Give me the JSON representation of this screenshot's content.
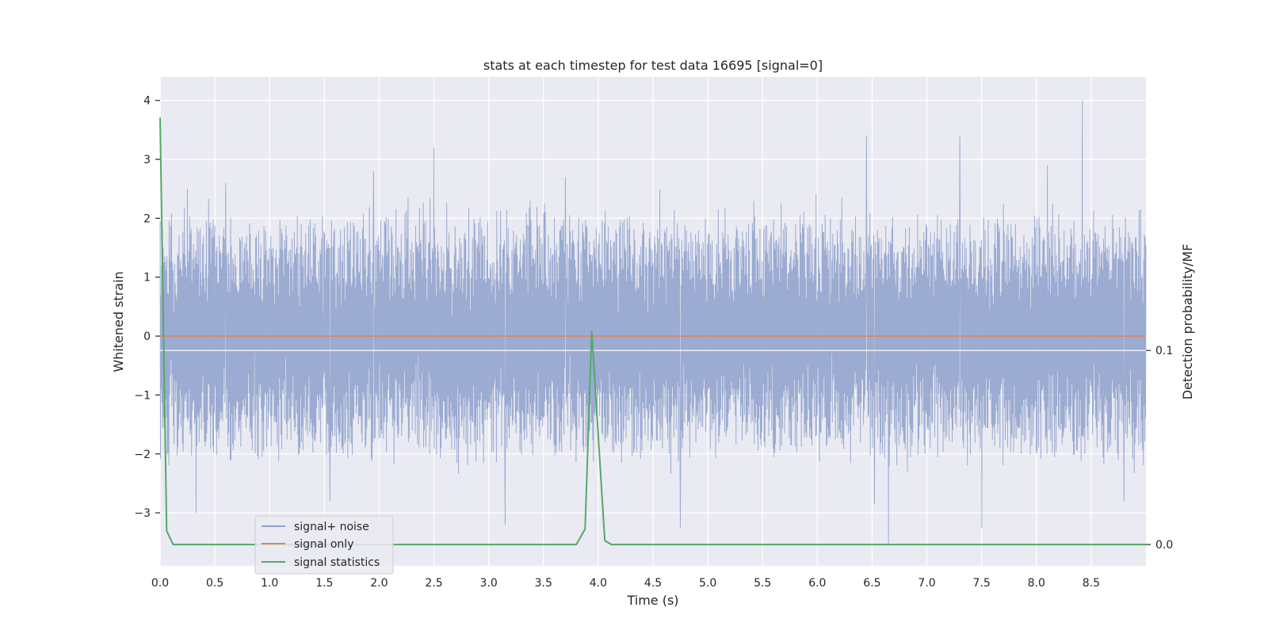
{
  "chart_data": {
    "type": "line",
    "title": "stats at each timestep for test data 16695 [signal=0]",
    "xlabel": "Time (s)",
    "ylabel": "Whitened strain",
    "y2label": "Detection probability/MF",
    "xlim": [
      0.0,
      9.0
    ],
    "ylim": [
      -3.9,
      4.4
    ],
    "y2lim": [
      -0.011,
      0.241
    ],
    "xticks": [
      0.0,
      0.5,
      1.0,
      1.5,
      2.0,
      2.5,
      3.0,
      3.5,
      4.0,
      4.5,
      5.0,
      5.5,
      6.0,
      6.5,
      7.0,
      7.5,
      8.0,
      8.5
    ],
    "xtick_labels": [
      "0.0",
      "0.5",
      "1.0",
      "1.5",
      "2.0",
      "2.5",
      "3.0",
      "3.5",
      "4.0",
      "4.5",
      "5.0",
      "5.5",
      "6.0",
      "6.5",
      "7.0",
      "7.5",
      "8.0",
      "8.5"
    ],
    "yticks": [
      4,
      3,
      2,
      1,
      0,
      -1,
      -2,
      -3
    ],
    "ytick_labels": [
      "4",
      "3",
      "2",
      "1",
      "0",
      "−1",
      "−2",
      "−3"
    ],
    "y2ticks": [
      0.1,
      0.0
    ],
    "y2tick_labels": [
      "0.1",
      "0.0"
    ],
    "grid": true,
    "legend_position": "lower-left",
    "series": [
      {
        "name": "signal+ noise",
        "axis": "left",
        "color": "#8da0cb",
        "description": "noise band",
        "x_range": [
          0.0,
          9.0
        ],
        "band_low": -2.0,
        "band_high": 2.0,
        "peaks": [
          [
            0.25,
            2.5
          ],
          [
            0.6,
            2.6
          ],
          [
            1.95,
            2.8
          ],
          [
            2.5,
            3.2
          ],
          [
            3.7,
            2.7
          ],
          [
            4.75,
            3.05
          ],
          [
            6.45,
            3.4
          ],
          [
            7.3,
            3.4
          ],
          [
            8.42,
            4.0
          ],
          [
            8.1,
            2.9
          ]
        ],
        "troughs": [
          [
            0.33,
            -3.0
          ],
          [
            1.55,
            -2.8
          ],
          [
            3.15,
            -3.2
          ],
          [
            4.75,
            -3.25
          ],
          [
            6.52,
            -2.85
          ],
          [
            6.65,
            -3.55
          ],
          [
            7.5,
            -3.25
          ],
          [
            8.8,
            -2.8
          ]
        ]
      },
      {
        "name": "signal only",
        "axis": "left",
        "color": "#dd8452",
        "x": [
          0.0,
          9.0
        ],
        "y": [
          0.0,
          0.0
        ]
      },
      {
        "name": "signal statistics",
        "axis": "right",
        "color": "#55a868",
        "x": [
          0.0,
          0.06,
          0.12,
          3.2,
          3.8,
          3.88,
          3.94,
          4.06,
          4.12,
          9.0
        ],
        "y": [
          0.22,
          0.007,
          0.0,
          0.0,
          0.0,
          0.008,
          0.11,
          0.002,
          0.0,
          0.0
        ]
      }
    ]
  }
}
